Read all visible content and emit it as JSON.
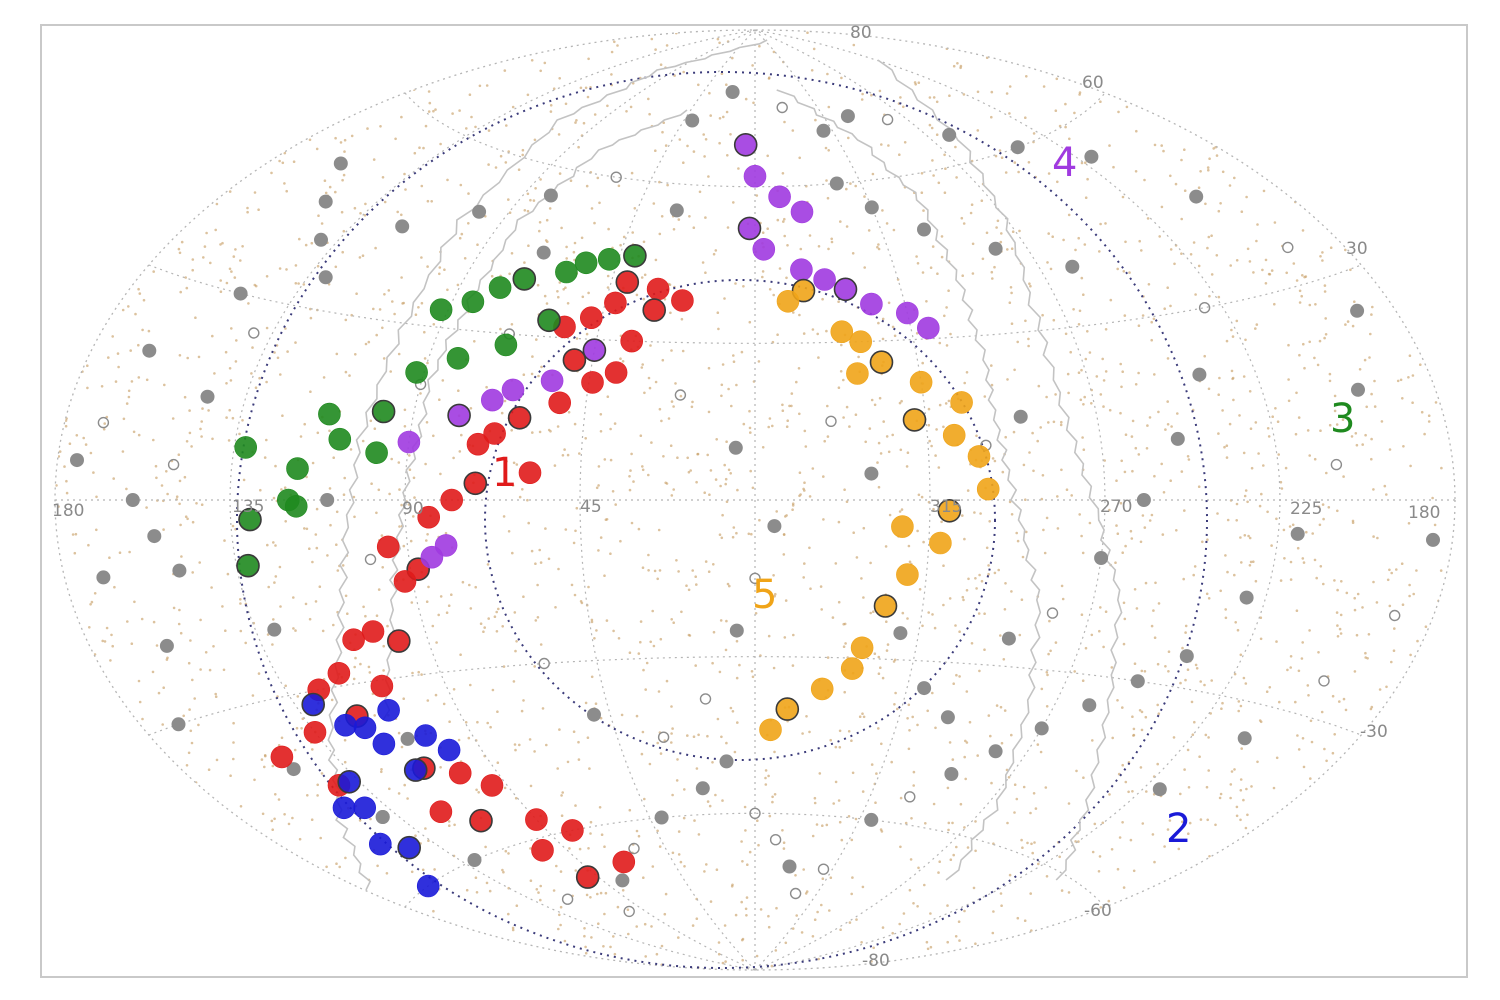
{
  "chart_data": {
    "type": "scatter",
    "projection": "aitoff",
    "title": "",
    "xlabel": "",
    "ylabel": "",
    "grid": true,
    "lon_tick_labels": [
      "180",
      "135",
      "90",
      "45",
      "315",
      "270",
      "225",
      "180"
    ],
    "lat_tick_labels": [
      "80",
      "60",
      "30",
      "-30",
      "-60",
      "-80"
    ],
    "colors": {
      "background_points": "#c9a26a",
      "grid": "#b5b5b5",
      "plane_boundary": "#c3c3c3",
      "dotted_circle": "#3b3b7a",
      "gray": "#8c8c8c",
      "group1": "#e01b1b",
      "group2": "#1a1ad8",
      "group3": "#1f8a1f",
      "group4": "#a03ae0",
      "group5": "#f0a418"
    },
    "series": [
      {
        "label": "1",
        "color": "#e01b1b",
        "points": [
          [
            -40,
            41
          ],
          [
            -30,
            40
          ],
          [
            -22,
            38
          ],
          [
            -42,
            37
          ],
          [
            -30,
            36
          ],
          [
            -48,
            34
          ],
          [
            -55,
            32
          ],
          [
            -35,
            30
          ],
          [
            -50,
            26
          ],
          [
            -38,
            24
          ],
          [
            -44,
            22
          ],
          [
            -52,
            18
          ],
          [
            -62,
            15
          ],
          [
            -68,
            12
          ],
          [
            -72,
            10
          ],
          [
            -58,
            5
          ],
          [
            -72,
            3
          ],
          [
            -78,
            0
          ],
          [
            -84,
            -3
          ],
          [
            -95,
            -8
          ],
          [
            -88,
            -12
          ],
          [
            -92,
            -14
          ],
          [
            -104,
            -22
          ],
          [
            -110,
            -23
          ],
          [
            -98,
            -24
          ],
          [
            -118,
            -28
          ],
          [
            -126,
            -30
          ],
          [
            -108,
            -31
          ],
          [
            -120,
            -35
          ],
          [
            -135,
            -36
          ],
          [
            -150,
            -38
          ],
          [
            -142,
            -44
          ],
          [
            -112,
            -45
          ],
          [
            -102,
            -47
          ],
          [
            -95,
            -50
          ],
          [
            -120,
            -52
          ],
          [
            -110,
            -55
          ],
          [
            -90,
            -57
          ],
          [
            -100,
            -62
          ],
          [
            -80,
            -60
          ],
          [
            -95,
            -68
          ],
          [
            -70,
            -67
          ]
        ]
      },
      {
        "label": "2",
        "color": "#1a1ad8",
        "points": [
          [
            -115,
            -45
          ],
          [
            -118,
            -40
          ],
          [
            -120,
            -37
          ],
          [
            -125,
            -36
          ],
          [
            -130,
            -32
          ],
          [
            -110,
            -35
          ],
          [
            -104,
            -40
          ],
          [
            -100,
            -43
          ],
          [
            -138,
            -44
          ],
          [
            -142,
            -48
          ],
          [
            -148,
            -47
          ],
          [
            -152,
            -53
          ],
          [
            -145,
            -55
          ],
          [
            -160,
            -60
          ]
        ]
      },
      {
        "label": "3",
        "color": "#1f8a1f",
        "points": [
          [
            -40,
            46
          ],
          [
            -48,
            45
          ],
          [
            -55,
            44
          ],
          [
            -60,
            42
          ],
          [
            -72,
            40
          ],
          [
            -78,
            38
          ],
          [
            -84,
            35
          ],
          [
            -92,
            33
          ],
          [
            -60,
            33
          ],
          [
            -70,
            28
          ],
          [
            -82,
            25
          ],
          [
            -92,
            22
          ],
          [
            -98,
            15
          ],
          [
            -112,
            14
          ],
          [
            -118,
            5
          ],
          [
            -120,
            0
          ],
          [
            -130,
            -3
          ],
          [
            -98,
            8
          ],
          [
            -108,
            10
          ],
          [
            -118,
            -1
          ],
          [
            -132,
            -10
          ],
          [
            -132,
            8
          ]
        ]
      },
      {
        "label": "4",
        "color": "#a03ae0",
        "points": [
          [
            -5,
            68
          ],
          [
            0,
            62
          ],
          [
            10,
            58
          ],
          [
            18,
            55
          ],
          [
            -2,
            52
          ],
          [
            3,
            48
          ],
          [
            15,
            44
          ],
          [
            22,
            42
          ],
          [
            28,
            40
          ],
          [
            35,
            37
          ],
          [
            45,
            35
          ],
          [
            50,
            32
          ],
          [
            -45,
            28
          ],
          [
            -55,
            22
          ],
          [
            -65,
            20
          ],
          [
            -70,
            18
          ],
          [
            -78,
            15
          ],
          [
            -90,
            10
          ],
          [
            -80,
            -8
          ],
          [
            -84,
            -10
          ]
        ]
      },
      {
        "label": "5",
        "color": "#f0a418",
        "points": [
          [
            15,
            40
          ],
          [
            10,
            38
          ],
          [
            25,
            32
          ],
          [
            30,
            30
          ],
          [
            35,
            26
          ],
          [
            28,
            24
          ],
          [
            45,
            22
          ],
          [
            55,
            18
          ],
          [
            42,
            15
          ],
          [
            52,
            12
          ],
          [
            58,
            8
          ],
          [
            60,
            2
          ],
          [
            50,
            -2
          ],
          [
            48,
            -8
          ],
          [
            38,
            -5
          ],
          [
            40,
            -14
          ],
          [
            35,
            -20
          ],
          [
            30,
            -28
          ],
          [
            28,
            -32
          ],
          [
            20,
            -36
          ],
          [
            10,
            -40
          ],
          [
            5,
            -44
          ]
        ]
      }
    ],
    "group_labels": [
      {
        "text": "1",
        "color": "#e01b1b"
      },
      {
        "text": "2",
        "color": "#1a1ad8"
      },
      {
        "text": "3",
        "color": "#1f8a1f"
      },
      {
        "text": "4",
        "color": "#a03ae0"
      },
      {
        "text": "5",
        "color": "#f0a418"
      }
    ]
  }
}
